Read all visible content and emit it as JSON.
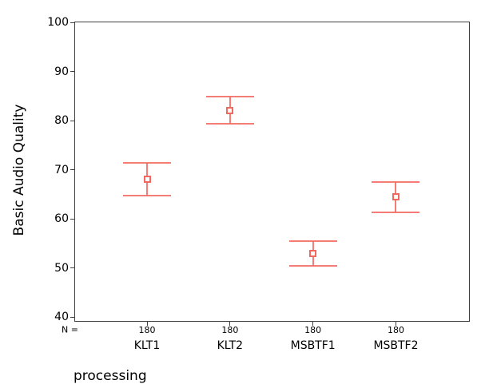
{
  "chart_data": {
    "type": "errorbar",
    "title": "",
    "ylabel": "Basic Audio Quality",
    "xlabel": "processing",
    "categories": [
      "KLT1",
      "KLT2",
      "MSBTF1",
      "MSBTF2"
    ],
    "n_row": {
      "prefix": "N =",
      "values": [
        "180",
        "180",
        "180",
        "180"
      ]
    },
    "series": [
      {
        "means": [
          68.0,
          82.1,
          53.0,
          64.4
        ],
        "ci_low": [
          64.7,
          79.3,
          50.4,
          61.3
        ],
        "ci_high": [
          71.4,
          84.9,
          55.4,
          67.5
        ]
      }
    ],
    "ylim": [
      40,
      100
    ],
    "yticks": [
      100,
      90,
      80,
      70,
      60,
      50,
      40
    ],
    "grid": false,
    "legend": "none",
    "marker": "open-square",
    "colors": {
      "errorbar": "#f2675e",
      "frame": "#3f3f3f",
      "text": "#000000",
      "background": "#ffffff"
    }
  }
}
